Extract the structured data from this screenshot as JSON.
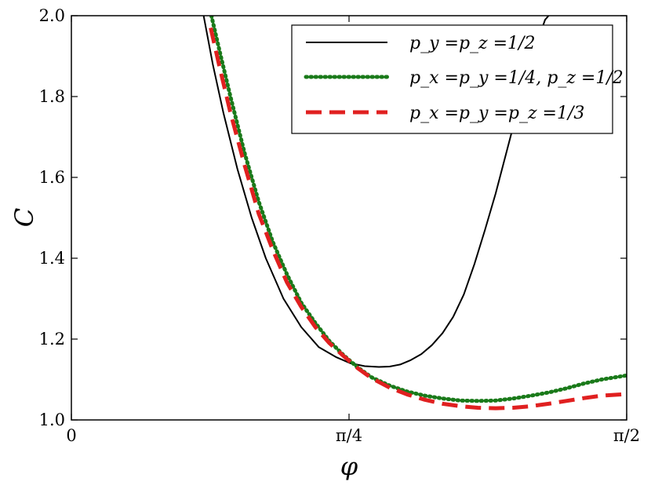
{
  "chart_data": {
    "type": "line",
    "title": "",
    "xlabel": "φ",
    "ylabel": "C",
    "xlim": [
      0,
      1.5708
    ],
    "ylim": [
      1.0,
      2.0
    ],
    "grid": false,
    "legend_position": "top-right",
    "x_ticks": [
      {
        "value": 0,
        "label": "0"
      },
      {
        "value": 0.7854,
        "label": "π/4"
      },
      {
        "value": 1.5708,
        "label": "π/2"
      }
    ],
    "y_ticks": [
      {
        "value": 1.0,
        "label": "1.0"
      },
      {
        "value": 1.2,
        "label": "1.2"
      },
      {
        "value": 1.4,
        "label": "1.4"
      },
      {
        "value": 1.6,
        "label": "1.6"
      },
      {
        "value": 1.8,
        "label": "1.8"
      },
      {
        "value": 2.0,
        "label": "2.0"
      }
    ],
    "series": [
      {
        "name": "p_y = p_z = 1/2",
        "legend_label": "p_y =p_z =1/2",
        "color": "#000000",
        "style": "solid",
        "x": [
          0.374,
          0.4,
          0.43,
          0.47,
          0.51,
          0.55,
          0.6,
          0.65,
          0.7,
          0.75,
          0.79,
          0.83,
          0.87,
          0.9,
          0.93,
          0.96,
          0.99,
          1.02,
          1.05,
          1.08,
          1.11,
          1.14,
          1.17,
          1.2,
          1.23,
          1.26,
          1.28,
          1.3,
          1.32,
          1.34,
          1.35
        ],
        "y": [
          2.0,
          1.88,
          1.76,
          1.62,
          1.5,
          1.4,
          1.3,
          1.23,
          1.18,
          1.155,
          1.14,
          1.133,
          1.131,
          1.132,
          1.137,
          1.148,
          1.163,
          1.185,
          1.215,
          1.255,
          1.31,
          1.385,
          1.47,
          1.56,
          1.66,
          1.76,
          1.83,
          1.89,
          1.94,
          1.99,
          2.0
        ]
      },
      {
        "name": "p_x = p_y = 1/4, p_z = 1/2",
        "legend_label": "p_x =p_y =1/4, p_z =1/2",
        "color": "#1a7a1a",
        "style": "dotted",
        "x": [
          0.396,
          0.42,
          0.45,
          0.49,
          0.53,
          0.57,
          0.61,
          0.65,
          0.69,
          0.73,
          0.77,
          0.81,
          0.85,
          0.9,
          0.95,
          1.0,
          1.05,
          1.1,
          1.15,
          1.2,
          1.25,
          1.3,
          1.35,
          1.4,
          1.45,
          1.5,
          1.5708
        ],
        "y": [
          2.0,
          1.91,
          1.8,
          1.66,
          1.54,
          1.44,
          1.36,
          1.29,
          1.24,
          1.195,
          1.16,
          1.13,
          1.105,
          1.085,
          1.07,
          1.06,
          1.053,
          1.048,
          1.047,
          1.048,
          1.053,
          1.06,
          1.068,
          1.078,
          1.09,
          1.1,
          1.11
        ]
      },
      {
        "name": "p_x = p_y = p_z = 1/3",
        "legend_label": "p_x =p_y =p_z =1/3",
        "color": "#e02020",
        "style": "dashed",
        "x": [
          0.394,
          0.42,
          0.45,
          0.49,
          0.53,
          0.57,
          0.61,
          0.65,
          0.69,
          0.73,
          0.77,
          0.81,
          0.85,
          0.9,
          0.95,
          1.0,
          1.05,
          1.1,
          1.15,
          1.2,
          1.25,
          1.3,
          1.35,
          1.4,
          1.45,
          1.5,
          1.5708
        ],
        "y": [
          1.97,
          1.87,
          1.76,
          1.63,
          1.51,
          1.42,
          1.34,
          1.28,
          1.23,
          1.19,
          1.158,
          1.128,
          1.103,
          1.08,
          1.063,
          1.05,
          1.04,
          1.034,
          1.03,
          1.029,
          1.03,
          1.034,
          1.04,
          1.047,
          1.054,
          1.06,
          1.064
        ]
      }
    ]
  }
}
